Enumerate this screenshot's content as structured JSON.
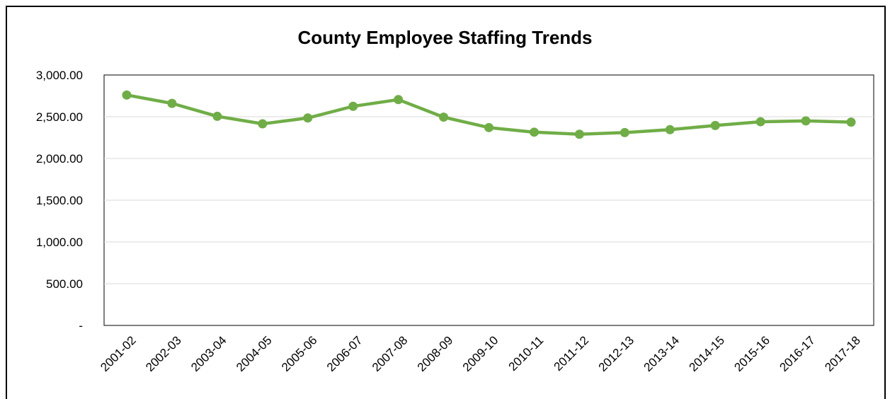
{
  "chart_data": {
    "type": "line",
    "title": "County Employee Staffing Trends",
    "categories": [
      "2001-02",
      "2002-03",
      "2003-04",
      "2004-05",
      "2005-06",
      "2006-07",
      "2007-08",
      "2008-09",
      "2009-10",
      "2010-11",
      "2011-12",
      "2012-13",
      "2013-14",
      "2014-15",
      "2015-16",
      "2016-17",
      "2017-18"
    ],
    "series": [
      {
        "values": [
          2760,
          2660,
          2505,
          2415,
          2485,
          2625,
          2705,
          2495,
          2370,
          2315,
          2290,
          2310,
          2345,
          2395,
          2440,
          2450,
          2435
        ]
      }
    ],
    "yticks": [
      "-",
      "500.00",
      "1,000.00",
      "1,500.00",
      "2,000.00",
      "2,500.00",
      "3,000.00"
    ],
    "ylim": [
      0,
      3000
    ],
    "grid": true,
    "line_color": "#70ad47"
  }
}
